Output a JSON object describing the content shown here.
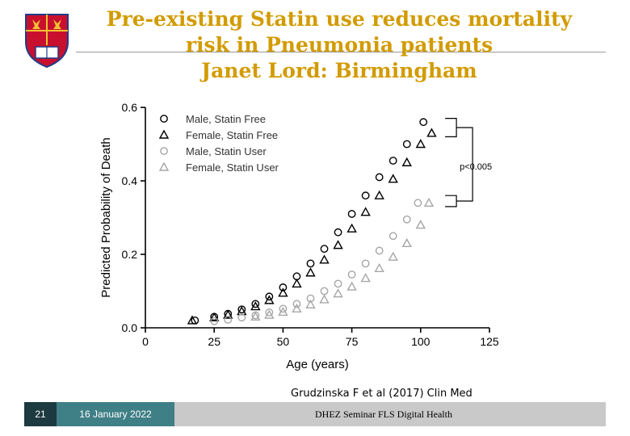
{
  "slide": {
    "title_lines": [
      "Pre-existing Statin use reduces mortality",
      "risk in Pneumonia patients",
      "Janet Lord: Birmingham"
    ],
    "citation": "Grudzinska F et al (2017) Clin Med",
    "colors": {
      "title": "#d29b00",
      "crest_red": "#c8102e",
      "crest_gold": "#f2c230",
      "crest_blue": "#1f3c88"
    }
  },
  "footer": {
    "slide_number": "21",
    "date": "16 January 2022",
    "text": "DHEZ Seminar FLS Digital Health"
  },
  "chart_data": {
    "type": "scatter",
    "xlabel": "Age (years)",
    "ylabel": "Predicted Probability of Death",
    "xlim": [
      0,
      125
    ],
    "ylim": [
      0,
      0.6
    ],
    "xticks": [
      0,
      25,
      50,
      75,
      100,
      125
    ],
    "xtick_labels": [
      "0",
      "25",
      "50",
      "75",
      "100",
      "125"
    ],
    "yticks": [
      0.0,
      0.2,
      0.4,
      0.6
    ],
    "ytick_labels": [
      "0.0",
      "0.2",
      "0.4",
      "0.6"
    ],
    "grid": false,
    "legend_position": "top-left",
    "series": [
      {
        "name": "Male, Statin Free",
        "marker": "circle",
        "color": "#000000",
        "x": [
          18,
          25,
          30,
          35,
          40,
          45,
          50,
          55,
          60,
          65,
          70,
          75,
          80,
          85,
          90,
          95,
          101
        ],
        "y": [
          0.02,
          0.03,
          0.038,
          0.05,
          0.065,
          0.085,
          0.11,
          0.14,
          0.175,
          0.215,
          0.26,
          0.31,
          0.36,
          0.41,
          0.455,
          0.5,
          0.56
        ]
      },
      {
        "name": "Female, Statin Free",
        "marker": "triangle",
        "color": "#000000",
        "x": [
          17,
          25,
          30,
          35,
          40,
          45,
          50,
          55,
          60,
          65,
          70,
          75,
          80,
          85,
          90,
          95,
          100,
          104
        ],
        "y": [
          0.02,
          0.028,
          0.035,
          0.045,
          0.058,
          0.075,
          0.095,
          0.12,
          0.15,
          0.185,
          0.225,
          0.27,
          0.315,
          0.36,
          0.405,
          0.45,
          0.5,
          0.53
        ]
      },
      {
        "name": "Male, Statin User",
        "marker": "circle",
        "color": "#a6a6a6",
        "x": [
          25,
          30,
          35,
          40,
          45,
          50,
          55,
          60,
          65,
          70,
          75,
          80,
          85,
          90,
          95,
          99
        ],
        "y": [
          0.018,
          0.022,
          0.028,
          0.034,
          0.042,
          0.052,
          0.065,
          0.08,
          0.1,
          0.12,
          0.145,
          0.175,
          0.21,
          0.25,
          0.295,
          0.34
        ]
      },
      {
        "name": "Female, Statin User",
        "marker": "triangle",
        "color": "#a6a6a6",
        "x": [
          40,
          45,
          50,
          55,
          60,
          65,
          70,
          75,
          80,
          85,
          90,
          95,
          100,
          103
        ],
        "y": [
          0.03,
          0.035,
          0.043,
          0.052,
          0.063,
          0.077,
          0.093,
          0.112,
          0.135,
          0.162,
          0.193,
          0.23,
          0.28,
          0.34
        ]
      }
    ],
    "annotations": [
      {
        "text": "p<0.005",
        "type": "bracket"
      }
    ]
  }
}
